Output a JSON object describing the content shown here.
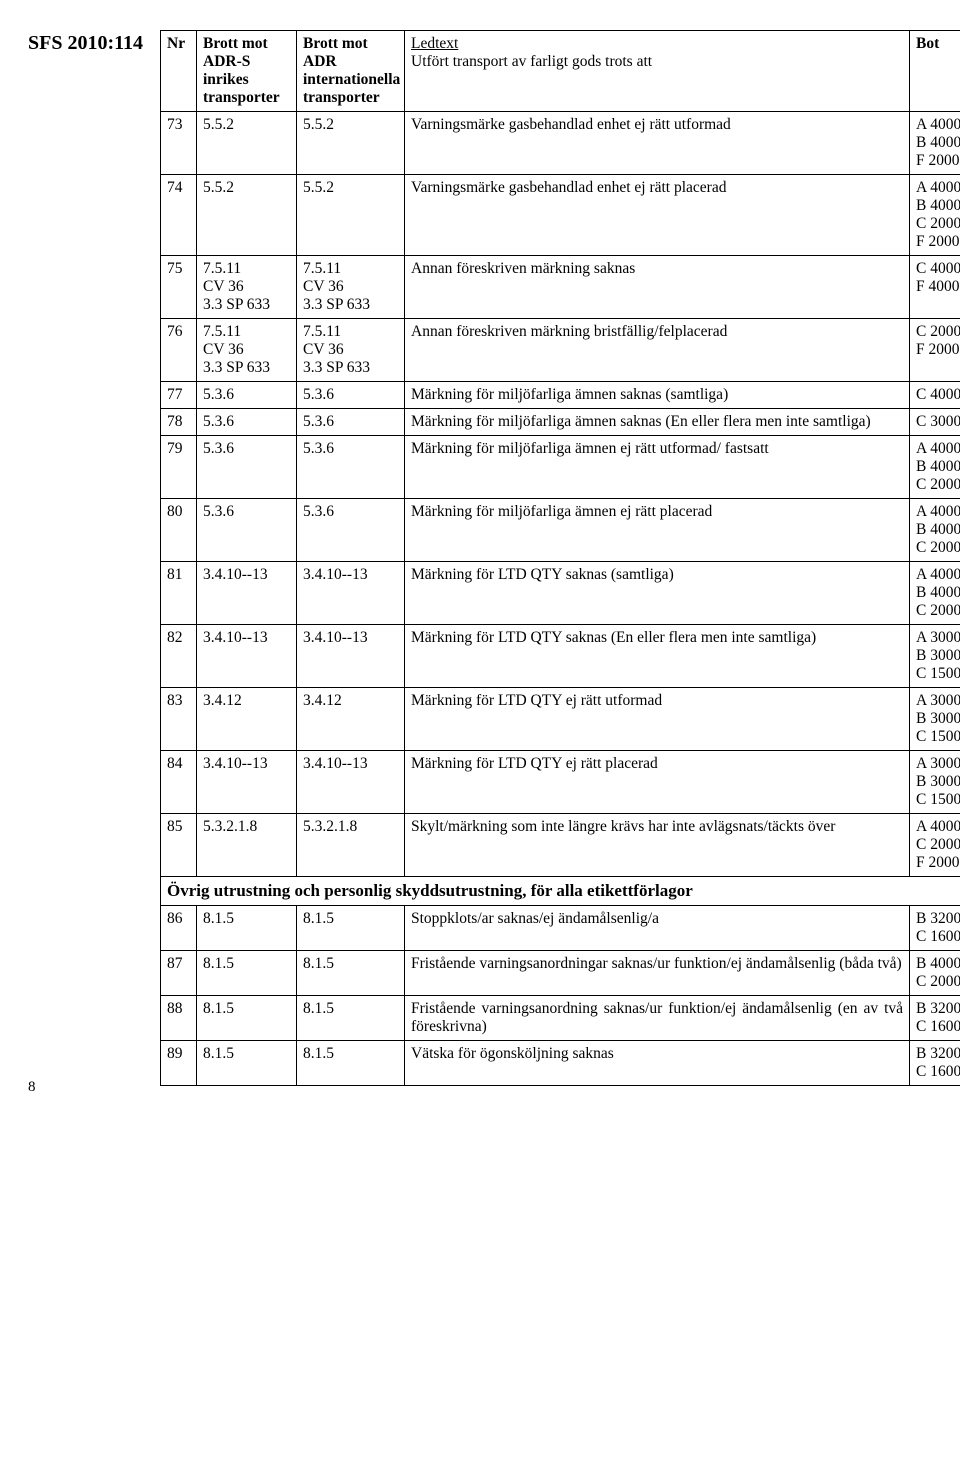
{
  "sfs": "SFS 2010:114",
  "header": {
    "nr": "Nr",
    "adrs": "Brott mot ADR-S inrikes transporter",
    "adr": "Brott mot ADR internationella transporter",
    "ledtext": "Ledtext",
    "ledtext2": "Utfört transport av farligt gods trots att",
    "bot": "Bot"
  },
  "rows": [
    {
      "nr": "73",
      "c2": "5.5.2",
      "c3": "5.5.2",
      "led": "Varningsmärke gasbehandlad enhet ej rätt utformad",
      "bot": "A 4000\nB 4000\nF 2000"
    },
    {
      "nr": "74",
      "c2": "5.5.2",
      "c3": "5.5.2",
      "led": "Varningsmärke gasbehandlad enhet ej rätt placerad",
      "bot": "A 4000\nB 4000\nC 2000\nF 2000"
    },
    {
      "nr": "75",
      "c2": "7.5.11\nCV 36\n3.3 SP 633",
      "c3": "7.5.11\nCV 36\n3.3 SP 633",
      "led": "Annan föreskriven märkning saknas",
      "bot": "C 4000\nF 4000"
    },
    {
      "nr": "76",
      "c2": "7.5.11\nCV 36\n3.3 SP 633",
      "c3": "7.5.11\nCV 36\n3.3 SP 633",
      "led": "Annan föreskriven märkning bristfällig/felplacerad",
      "bot": "C 2000\nF 2000"
    },
    {
      "nr": "77",
      "c2": "5.3.6",
      "c3": "5.3.6",
      "led": "Märkning för miljöfarliga ämnen saknas (samtliga)",
      "bot": "C 4000"
    },
    {
      "nr": "78",
      "c2": "5.3.6",
      "c3": "5.3.6",
      "led": "Märkning för miljöfarliga ämnen saknas (En eller flera men inte samtliga)",
      "bot": "C 3000"
    },
    {
      "nr": "79",
      "c2": "5.3.6",
      "c3": "5.3.6",
      "led": "Märkning för miljöfarliga ämnen ej rätt utformad/ fastsatt",
      "bot": "A 4000\nB 4000\nC 2000"
    },
    {
      "nr": "80",
      "c2": "5.3.6",
      "c3": "5.3.6",
      "led": "Märkning för miljöfarliga ämnen ej rätt placerad",
      "bot": "A 4000\nB 4000\nC 2000"
    },
    {
      "nr": "81",
      "c2": "3.4.10--13",
      "c3": "3.4.10--13",
      "led": "Märkning för LTD QTY saknas (samtliga)",
      "bot": "A 4000\nB 4000\nC 2000"
    },
    {
      "nr": "82",
      "c2": "3.4.10--13",
      "c3": "3.4.10--13",
      "led": "Märkning för LTD QTY saknas (En eller flera men inte samtliga)",
      "bot": "A 3000\nB 3000\nC 1500"
    },
    {
      "nr": "83",
      "c2": "3.4.12",
      "c3": "3.4.12",
      "led": "Märkning för LTD QTY ej rätt utformad",
      "bot": "A 3000\nB 3000\nC 1500"
    },
    {
      "nr": "84",
      "c2": "3.4.10--13",
      "c3": "3.4.10--13",
      "led": "Märkning för LTD QTY ej rätt placerad",
      "bot": "A 3000\nB 3000\nC 1500"
    },
    {
      "nr": "85",
      "c2": "5.3.2.1.8",
      "c3": "5.3.2.1.8",
      "led": "Skylt/märkning som inte längre krävs har inte avlägsnats/täckts över",
      "bot": "A 4000\nC 2000\nF 2000"
    }
  ],
  "section2": {
    "title": "Övrig utrustning och personlig skyddsutrustning, för alla etikettförlagor"
  },
  "rows2": [
    {
      "nr": "86",
      "c2": "8.1.5",
      "c3": "8.1.5",
      "led": "Stoppklots/ar saknas/ej ändamålsenlig/a",
      "bot": "B 3200\nC 1600"
    },
    {
      "nr": "87",
      "c2": "8.1.5",
      "c3": "8.1.5",
      "led": "Fristående varningsanordningar saknas/ur funktion/ej ändamålsenlig (båda två)",
      "bot": "B 4000\nC 2000"
    },
    {
      "nr": "88",
      "c2": "8.1.5",
      "c3": "8.1.5",
      "led": "Fristående varningsanordning saknas/ur funktion/ej ändamålsenlig (en av två föreskrivna)",
      "bot": "B 3200\nC 1600"
    },
    {
      "nr": "89",
      "c2": "8.1.5",
      "c3": "8.1.5",
      "led": "Vätska för ögonsköljning saknas",
      "bot": "B 3200\nC 1600"
    }
  ],
  "page_number": "8"
}
